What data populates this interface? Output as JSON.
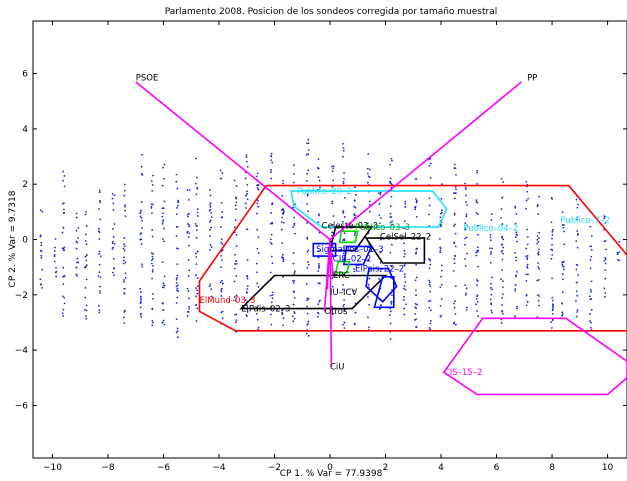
{
  "chart_data": {
    "type": "scatter",
    "title": "Parlamento 2008. Posicion de los sondeos corregida por tamaño muestral",
    "xlabel": "CP 1. % Var = 77.9398",
    "ylabel": "CP 2. % Var = 9.7318",
    "xlim": [
      -10.7,
      10.7
    ],
    "ylim": [
      -7.9,
      7.9
    ],
    "xticks": [
      "−10",
      "−8",
      "−6",
      "−4",
      "−2",
      "0",
      "2",
      "4",
      "6",
      "8",
      "10"
    ],
    "yticks": [
      "−6",
      "−4",
      "−2",
      "0",
      "2",
      "4",
      "6"
    ],
    "grid": false,
    "colors": {
      "points": "#1f2ad8",
      "vectors": "#ff00ff",
      "red_hull": "#ff0000",
      "cyan_hull": "#20e0ff",
      "magenta_hull": "#ff00ff",
      "black_hull": "#000000",
      "blue_hull": "#0000ff",
      "green_hull": "#00dd00"
    },
    "point_columns": [
      {
        "x": -10.4,
        "ymin": -2.0,
        "ymax": 1.2
      },
      {
        "x": -9.9,
        "ymin": -1.5,
        "ymax": 0.5
      },
      {
        "x": -9.6,
        "ymin": -2.8,
        "ymax": 2.7
      },
      {
        "x": -9.1,
        "ymin": -1.5,
        "ymax": 1.4
      },
      {
        "x": -8.8,
        "ymin": -2.9,
        "ymax": 1.4
      },
      {
        "x": -8.3,
        "ymin": -2.8,
        "ymax": 1.9
      },
      {
        "x": -7.8,
        "ymin": -1.5,
        "ymax": 2.0
      },
      {
        "x": -7.4,
        "ymin": -3.3,
        "ymax": 2.2
      },
      {
        "x": -6.8,
        "ymin": -2.8,
        "ymax": 3.3
      },
      {
        "x": -6.4,
        "ymin": -3.1,
        "ymax": 2.5
      },
      {
        "x": -6.0,
        "ymin": -3.1,
        "ymax": 2.9
      },
      {
        "x": -5.5,
        "ymin": -3.8,
        "ymax": 2.4
      },
      {
        "x": -5.1,
        "ymin": -3.1,
        "ymax": 1.9
      },
      {
        "x": -4.8,
        "ymin": -3.1,
        "ymax": 3.1
      },
      {
        "x": -4.3,
        "ymin": -2.2,
        "ymax": 1.9
      },
      {
        "x": -3.9,
        "ymin": -3.2,
        "ymax": 2.7
      },
      {
        "x": -3.4,
        "ymin": -3.5,
        "ymax": 2.2
      },
      {
        "x": -3.0,
        "ymin": -2.8,
        "ymax": 3.1
      },
      {
        "x": -2.6,
        "ymin": -3.3,
        "ymax": 2.5
      },
      {
        "x": -2.1,
        "ymin": -3.2,
        "ymax": 3.2
      },
      {
        "x": -1.7,
        "ymin": -3.3,
        "ymax": 2.2
      },
      {
        "x": -1.3,
        "ymin": -3.0,
        "ymax": 2.8
      },
      {
        "x": -0.8,
        "ymin": -3.5,
        "ymax": 3.7
      },
      {
        "x": -0.4,
        "ymin": -3.2,
        "ymax": 3.0
      },
      {
        "x": 0.1,
        "ymin": -3.4,
        "ymax": 2.7
      },
      {
        "x": 0.5,
        "ymin": -3.4,
        "ymax": 3.5
      },
      {
        "x": 0.9,
        "ymin": -3.3,
        "ymax": 2.1
      },
      {
        "x": 1.4,
        "ymin": -3.4,
        "ymax": 3.1
      },
      {
        "x": 1.8,
        "ymin": -3.0,
        "ymax": 2.0
      },
      {
        "x": 2.2,
        "ymin": -3.6,
        "ymax": 3.2
      },
      {
        "x": 2.7,
        "ymin": -2.8,
        "ymax": 2.0
      },
      {
        "x": 3.1,
        "ymin": -3.2,
        "ymax": 2.5
      },
      {
        "x": 3.6,
        "ymin": -3.3,
        "ymax": 3.0
      },
      {
        "x": 4.0,
        "ymin": -3.1,
        "ymax": 2.1
      },
      {
        "x": 4.5,
        "ymin": -3.3,
        "ymax": 2.9
      },
      {
        "x": 4.9,
        "ymin": -2.6,
        "ymax": 2.2
      },
      {
        "x": 5.3,
        "ymin": -3.4,
        "ymax": 2.5
      },
      {
        "x": 5.8,
        "ymin": -2.9,
        "ymax": 1.1
      },
      {
        "x": 6.2,
        "ymin": -3.4,
        "ymax": 2.4
      },
      {
        "x": 6.7,
        "ymin": -2.9,
        "ymax": 1.4
      },
      {
        "x": 7.1,
        "ymin": -3.0,
        "ymax": 2.2
      },
      {
        "x": 7.5,
        "ymin": -2.9,
        "ymax": 1.8
      },
      {
        "x": 8.0,
        "ymin": -3.3,
        "ymax": 2.0
      },
      {
        "x": 8.4,
        "ymin": -3.0,
        "ymax": 1.2
      },
      {
        "x": 8.9,
        "ymin": -2.9,
        "ymax": 1.6
      },
      {
        "x": 9.4,
        "ymin": -3.3,
        "ymax": 0.7
      },
      {
        "x": 9.9,
        "ymin": -2.1,
        "ymax": 1.2
      },
      {
        "x": 10.4,
        "ymin": -0.9,
        "ymax": 0.2
      }
    ],
    "vectors": [
      {
        "label": "PSOE",
        "x": -7.0,
        "y": 5.7
      },
      {
        "label": "PP",
        "x": 6.9,
        "y": 5.7
      },
      {
        "label": "CiU",
        "x": 0.05,
        "y": -4.6
      },
      {
        "label": "Otros",
        "x": -0.2,
        "y": -2.6
      },
      {
        "label": "IU–ICV",
        "x": -0.1,
        "y": -1.8
      },
      {
        "label": "ERC",
        "x": 0.1,
        "y": -1.3
      }
    ],
    "hulls": [
      {
        "color": "red",
        "points": [
          [
            -2.3,
            1.95
          ],
          [
            8.6,
            1.95
          ],
          [
            10.9,
            -0.8
          ],
          [
            10.9,
            -3.3
          ],
          [
            -3.4,
            -3.3
          ],
          [
            -4.7,
            -2.6
          ],
          [
            -4.7,
            -1.5
          ]
        ]
      },
      {
        "color": "cyan",
        "points": [
          [
            -1.4,
            1.75
          ],
          [
            3.7,
            1.75
          ],
          [
            4.2,
            1.1
          ],
          [
            3.9,
            0.45
          ],
          [
            -0.3,
            0.45
          ],
          [
            -1.3,
            1.2
          ]
        ]
      },
      {
        "color": "magenta",
        "points": [
          [
            5.5,
            -2.85
          ],
          [
            8.5,
            -2.85
          ],
          [
            10.7,
            -4.4
          ],
          [
            10.7,
            -5.0
          ],
          [
            10.0,
            -5.6
          ],
          [
            5.3,
            -5.6
          ],
          [
            4.1,
            -4.8
          ]
        ]
      },
      {
        "color": "black",
        "points": [
          [
            -2.0,
            -1.3
          ],
          [
            2.0,
            -1.3
          ],
          [
            0.8,
            -2.5
          ],
          [
            -3.2,
            -2.5
          ]
        ]
      },
      {
        "color": "black",
        "points": [
          [
            0.2,
            0.45
          ],
          [
            1.5,
            0.45
          ],
          [
            0.9,
            -0.4
          ],
          [
            0.0,
            -0.4
          ]
        ]
      },
      {
        "color": "black",
        "points": [
          [
            1.3,
            0.05
          ],
          [
            3.4,
            0.05
          ],
          [
            3.4,
            -0.85
          ],
          [
            1.9,
            -0.85
          ]
        ]
      },
      {
        "color": "blue",
        "points": [
          [
            1.4,
            -1.05
          ],
          [
            2.1,
            -1.05
          ],
          [
            2.4,
            -1.7
          ],
          [
            1.9,
            -2.25
          ],
          [
            1.3,
            -1.7
          ]
        ]
      },
      {
        "color": "blue",
        "points": [
          [
            1.9,
            -1.35
          ],
          [
            2.3,
            -1.35
          ],
          [
            2.3,
            -2.45
          ],
          [
            1.6,
            -2.45
          ]
        ]
      },
      {
        "color": "blue",
        "points": [
          [
            -0.6,
            -0.15
          ],
          [
            0.2,
            -0.15
          ],
          [
            0.2,
            -0.6
          ],
          [
            -0.6,
            -0.6
          ]
        ]
      },
      {
        "color": "blue",
        "points": [
          [
            0.6,
            -0.25
          ],
          [
            1.5,
            -0.25
          ],
          [
            1.2,
            -0.9
          ],
          [
            0.5,
            -0.9
          ]
        ]
      },
      {
        "color": "green",
        "points": [
          [
            0.4,
            0.3
          ],
          [
            1.0,
            0.3
          ],
          [
            0.9,
            -0.1
          ],
          [
            0.35,
            -0.1
          ]
        ]
      },
      {
        "color": "green",
        "points": [
          [
            0.3,
            -0.8
          ],
          [
            0.7,
            -0.8
          ],
          [
            0.6,
            -1.2
          ],
          [
            0.2,
            -1.2
          ]
        ]
      }
    ],
    "labels": [
      {
        "text": "PSOE",
        "x": -7.0,
        "y": 5.75,
        "color": "#000000"
      },
      {
        "text": "PP",
        "x": 7.1,
        "y": 5.75,
        "color": "#000000"
      },
      {
        "text": "Publico–29–2",
        "x": -1.2,
        "y": 1.65,
        "color": "#20e0ff"
      },
      {
        "text": "Publico–04–2",
        "x": 4.8,
        "y": 0.3,
        "color": "#20e0ff"
      },
      {
        "text": "Publico–7–2",
        "x": 8.3,
        "y": 0.6,
        "color": "#20e0ff"
      },
      {
        "text": "Celeste–03–3",
        "x": -0.3,
        "y": 0.4,
        "color": "#000000"
      },
      {
        "text": "Publico–03–3",
        "x": 0.9,
        "y": 0.35,
        "color": "#00aa00"
      },
      {
        "text": "CelSel–22–2",
        "x": 1.8,
        "y": 0.0,
        "color": "#000000"
      },
      {
        "text": "SigmaDos–01–3",
        "x": -0.5,
        "y": -0.45,
        "color": "#0000ff"
      },
      {
        "text": "CIS–02–2",
        "x": 0.1,
        "y": -0.8,
        "color": "#0000ff"
      },
      {
        "text": "ElPais–22–2",
        "x": 0.9,
        "y": -1.15,
        "color": "#0000ff"
      },
      {
        "text": "ERC",
        "x": 0.1,
        "y": -1.4,
        "color": "#000000"
      },
      {
        "text": "IU–ICV",
        "x": 0.0,
        "y": -2.0,
        "color": "#000000"
      },
      {
        "text": "Otros",
        "x": -0.2,
        "y": -2.7,
        "color": "#000000"
      },
      {
        "text": "CiU",
        "x": 0.0,
        "y": -4.7,
        "color": "#000000"
      },
      {
        "text": "ElMund–03–3",
        "x": -4.7,
        "y": -2.3,
        "color": "#ff0000"
      },
      {
        "text": "ElPais–02–3",
        "x": -3.2,
        "y": -2.6,
        "color": "#000000"
      },
      {
        "text": "CIS–15–2",
        "x": 4.1,
        "y": -4.9,
        "color": "#ff00ff"
      }
    ]
  }
}
